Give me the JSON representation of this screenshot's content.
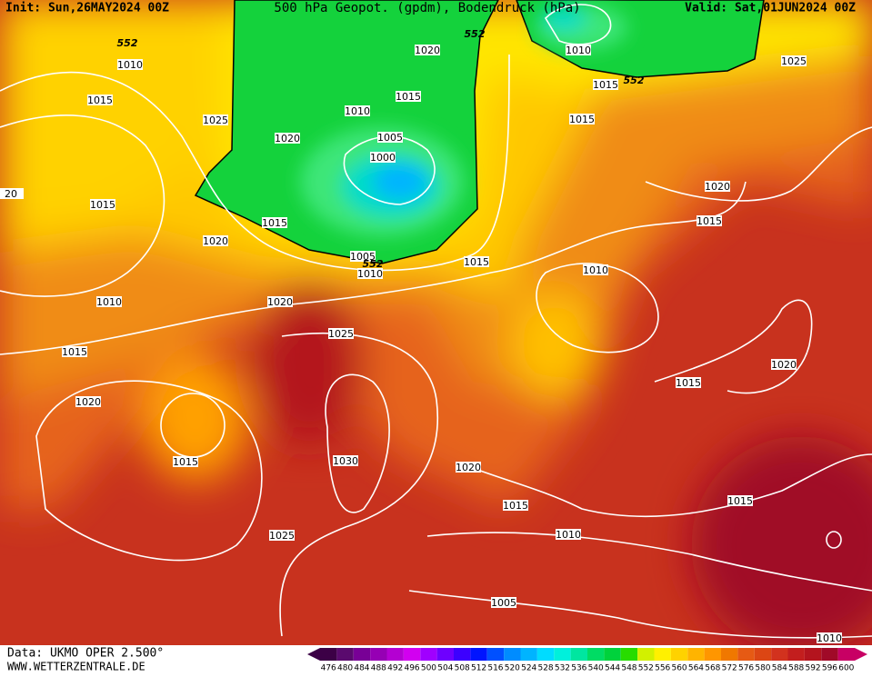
{
  "header": {
    "init": "Init: Sun,26MAY2024 00Z",
    "title": "500 hPa Geopot. (gpdm), Bodendruck (hPa)",
    "valid": "Valid: Sat,01JUN2024 00Z"
  },
  "isobar_labels": [
    "552",
    "1010",
    "1015",
    "1025",
    "1020",
    "1010",
    "1015",
    "1020",
    "552",
    "1010",
    "1025",
    "1015",
    "552",
    "1015",
    "1005",
    "1000",
    "1020",
    "1015",
    "1015",
    "1020",
    "1015",
    "1005",
    "552",
    "1010",
    "1015",
    "1010",
    "1010",
    "1020",
    "1025",
    "1015",
    "1020",
    "1015",
    "1020",
    "1015",
    "1030",
    "1020",
    "1015",
    "1015",
    "1025",
    "1010",
    "1005",
    "1010",
    "20"
  ],
  "footer": {
    "data": "Data: UKMO OPER 2.500°",
    "site": "WWW.WETTERZENTRALE.DE"
  },
  "scale": {
    "labels": [
      476,
      480,
      484,
      488,
      492,
      496,
      500,
      504,
      508,
      512,
      516,
      520,
      524,
      528,
      532,
      536,
      540,
      544,
      548,
      552,
      556,
      560,
      564,
      568,
      572,
      576,
      580,
      584,
      588,
      592,
      596,
      600
    ],
    "colors": [
      "#3c0046",
      "#5a0a6e",
      "#780096",
      "#9600b4",
      "#b400d2",
      "#d200f0",
      "#a000ff",
      "#6e00ff",
      "#3c00ff",
      "#0014ff",
      "#0050ff",
      "#008cff",
      "#00b4ff",
      "#00dcff",
      "#00f0dc",
      "#00e6a0",
      "#00dc64",
      "#00d23c",
      "#28dc00",
      "#d2f000",
      "#fff000",
      "#ffd200",
      "#ffb400",
      "#ff9600",
      "#f07800",
      "#e65a14",
      "#dc4614",
      "#d2321e",
      "#c31e1e",
      "#b4141e",
      "#a00a28",
      "#c80064"
    ]
  }
}
